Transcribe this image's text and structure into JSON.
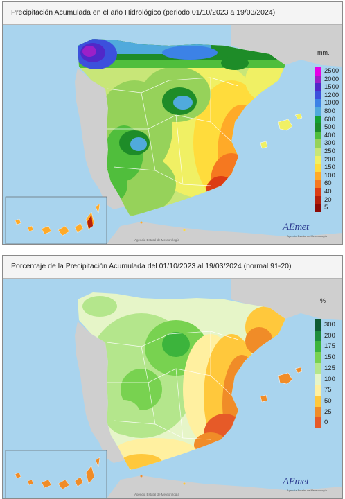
{
  "colors": {
    "sea": "#a9d4ee",
    "land_grey": "#cfcfcf",
    "border": "#ffffff"
  },
  "top_map": {
    "title": "Precipitación Acumulada en el año Hidrológico  (periodo:01/10/2023 a 19/03/2024)",
    "unit": "mm.",
    "legend": [
      {
        "label": "2500",
        "color": "#e600e6"
      },
      {
        "label": "2000",
        "color": "#9b20c8"
      },
      {
        "label": "1500",
        "color": "#5028c8"
      },
      {
        "label": "1200",
        "color": "#3c50dc"
      },
      {
        "label": "1000",
        "color": "#3c82e6"
      },
      {
        "label": "800",
        "color": "#50aadc"
      },
      {
        "label": "600",
        "color": "#14a032"
      },
      {
        "label": "500",
        "color": "#1e8c28"
      },
      {
        "label": "400",
        "color": "#50be3c"
      },
      {
        "label": "300",
        "color": "#96d25a"
      },
      {
        "label": "250",
        "color": "#c8e678"
      },
      {
        "label": "200",
        "color": "#f0f064"
      },
      {
        "label": "150",
        "color": "#ffdc3c"
      },
      {
        "label": "100",
        "color": "#ffaa28"
      },
      {
        "label": "60",
        "color": "#f57820"
      },
      {
        "label": "40",
        "color": "#dc3c14"
      },
      {
        "label": "20",
        "color": "#b41e0a"
      },
      {
        "label": "5",
        "color": "#8c0a05"
      }
    ],
    "logo": "AEmet",
    "logo_sub": "Agencia Estatal de Meteorología",
    "credit": "Agencia Estatal de Meteorología"
  },
  "bottom_map": {
    "title": "Porcentaje de la Precipitación Acumulada del 01/10/2023 al 19/03/2024 (normal 91-20)",
    "unit": "%",
    "legend": [
      {
        "label": "300",
        "color": "#0f5a32"
      },
      {
        "label": "200",
        "color": "#1e8c3c"
      },
      {
        "label": "175",
        "color": "#3cb43c"
      },
      {
        "label": "150",
        "color": "#78d250"
      },
      {
        "label": "125",
        "color": "#b4e68c"
      },
      {
        "label": "100",
        "color": "#e6f5c8"
      },
      {
        "label": "75",
        "color": "#fff0a0"
      },
      {
        "label": "50",
        "color": "#ffc83c"
      },
      {
        "label": "25",
        "color": "#f08c28"
      },
      {
        "label": "0",
        "color": "#e65a28"
      }
    ],
    "logo": "AEmet",
    "logo_sub": "Agencia Estatal de Meteorología",
    "credit": "Agencia Estatal de Meteorología"
  }
}
